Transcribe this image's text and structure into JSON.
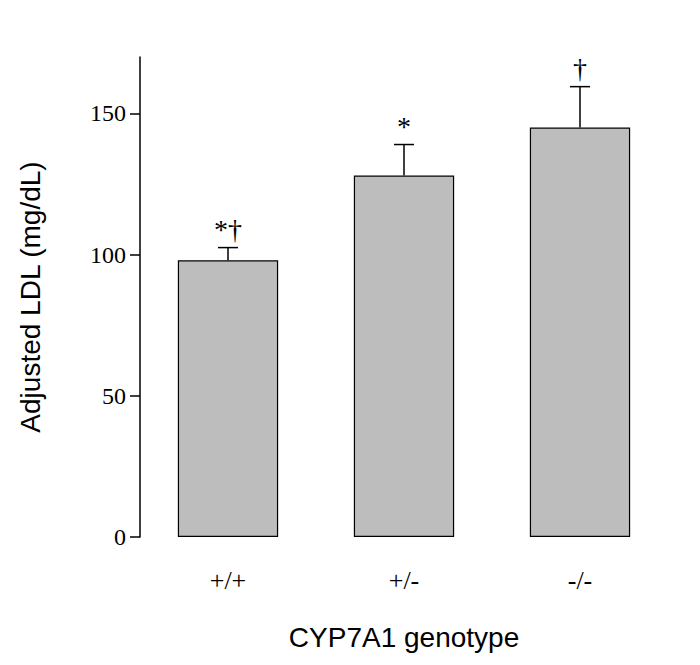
{
  "chart_data": {
    "type": "bar",
    "categories": [
      "+/+",
      "+/-",
      "-/-"
    ],
    "values": [
      98,
      128,
      145
    ],
    "errors": [
      4.5,
      11,
      14.5
    ],
    "annotations": [
      "*†",
      "*",
      "†"
    ],
    "color": "#bdbdbd",
    "x_label": "CYP7A1 genotype",
    "y_label": "Adjusted LDL (mg/dL)",
    "ylim": [
      0,
      170
    ],
    "yticks": [
      0,
      50,
      100,
      150
    ],
    "grid": false
  }
}
